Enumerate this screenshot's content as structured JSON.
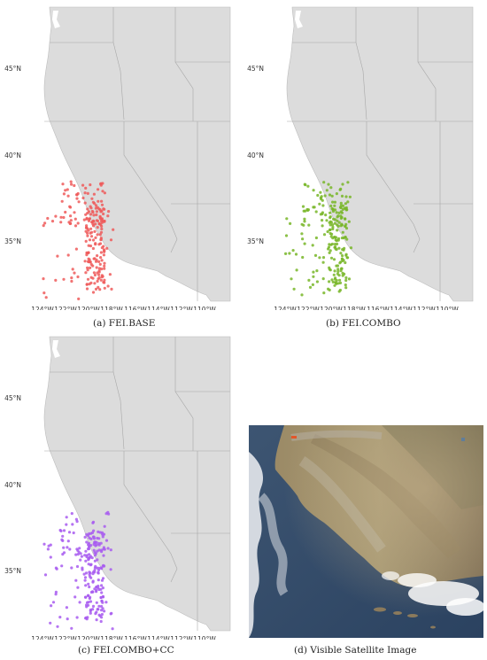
{
  "figure": {
    "lat_ticks": [
      "45°N",
      "40°N",
      "35°N"
    ],
    "lon_ticks": [
      "124°W",
      "122°W",
      "120°W",
      "118°W",
      "116°W",
      "114°W",
      "112°W",
      "110°W"
    ],
    "point_colors": {
      "fei_base": "#ee5a5a",
      "fei_combo": "#78b628",
      "fei_combo_cc": "#a85cf0"
    },
    "land_color": "#dcdcdc",
    "border_color": "#a8a8a8"
  },
  "panels": [
    {
      "id": "a",
      "caption": "(a) FEI.BASE"
    },
    {
      "id": "b",
      "caption": "(b) FEI.COMBO"
    },
    {
      "id": "c",
      "caption": "(c) FEI.COMBO+CC"
    },
    {
      "id": "d",
      "caption": "(d) Visible Satellite Image"
    }
  ]
}
